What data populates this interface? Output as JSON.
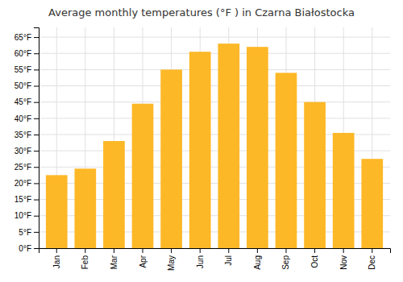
{
  "chart_data": {
    "type": "bar",
    "title": "Average monthly temperatures (°F ) in Czarna Białostocka",
    "categories": [
      "Jan",
      "Feb",
      "Mar",
      "Apr",
      "May",
      "Jun",
      "Jul",
      "Aug",
      "Sep",
      "Oct",
      "Nov",
      "Dec"
    ],
    "values": [
      22.5,
      24.5,
      33.0,
      44.5,
      55.0,
      60.5,
      63.0,
      62.0,
      54.0,
      45.0,
      35.5,
      27.5
    ],
    "color": "#FDB827",
    "ylim": [
      0,
      68
    ],
    "yticks": [
      {
        "value": 0,
        "label": "0°F"
      },
      {
        "value": 5,
        "label": "5°F"
      },
      {
        "value": 10,
        "label": "10°F"
      },
      {
        "value": 15,
        "label": "15°F"
      },
      {
        "value": 20,
        "label": "20°F"
      },
      {
        "value": 25,
        "label": "25°F"
      },
      {
        "value": 30,
        "label": "30°F"
      },
      {
        "value": 35,
        "label": "35°F"
      },
      {
        "value": 40,
        "label": "40°F"
      },
      {
        "value": 45,
        "label": "45°F"
      },
      {
        "value": 50,
        "label": "50°F"
      },
      {
        "value": 55,
        "label": "55°F"
      },
      {
        "value": 60,
        "label": "60°F"
      },
      {
        "value": 65,
        "label": "65°F"
      }
    ],
    "grid": true
  }
}
